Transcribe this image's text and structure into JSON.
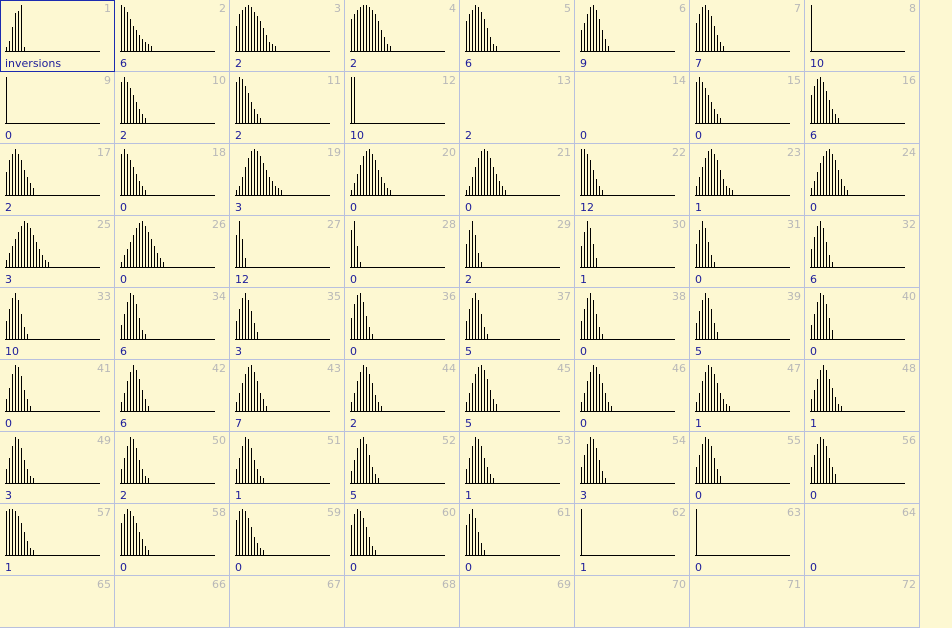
{
  "label_word": "inversions",
  "cells": [
    {
      "n": "1",
      "label": "inversions",
      "bars": [
        2,
        5,
        12,
        19,
        20,
        23,
        2
      ],
      "sel": true
    },
    {
      "n": "2",
      "label": "6",
      "bars": [
        20,
        19,
        17,
        14,
        11,
        9,
        7,
        5,
        4,
        3,
        2
      ]
    },
    {
      "n": "3",
      "label": "2",
      "bars": [
        11,
        16,
        18,
        19,
        20,
        19,
        17,
        15,
        13,
        10,
        7,
        4,
        3,
        2
      ]
    },
    {
      "n": "4",
      "label": "2",
      "bars": [
        14,
        16,
        18,
        19,
        20,
        20,
        19,
        18,
        16,
        13,
        9,
        6,
        3,
        2
      ]
    },
    {
      "n": "5",
      "label": "6",
      "bars": [
        13,
        16,
        18,
        20,
        19,
        17,
        14,
        10,
        6,
        3,
        2
      ]
    },
    {
      "n": "6",
      "label": "9",
      "bars": [
        9,
        12,
        16,
        19,
        20,
        18,
        14,
        9,
        5,
        2
      ]
    },
    {
      "n": "7",
      "label": "7",
      "bars": [
        12,
        16,
        19,
        20,
        18,
        15,
        11,
        7,
        4,
        2
      ]
    },
    {
      "n": "8",
      "label": "10",
      "bars": [
        20,
        1,
        1,
        1,
        1,
        1,
        1,
        1,
        1,
        1,
        1,
        1,
        1,
        1,
        1
      ]
    },
    {
      "n": "9",
      "label": "0",
      "bars": [
        20,
        1,
        1,
        1,
        1,
        1,
        1,
        1,
        1,
        1,
        1,
        1,
        1,
        1,
        1
      ]
    },
    {
      "n": "10",
      "label": "2",
      "bars": [
        18,
        20,
        18,
        15,
        12,
        9,
        6,
        4,
        2
      ]
    },
    {
      "n": "11",
      "label": "2",
      "bars": [
        18,
        20,
        19,
        16,
        13,
        9,
        6,
        4,
        2
      ]
    },
    {
      "n": "12",
      "label": "10",
      "bars": [
        20,
        20
      ]
    },
    {
      "n": "13",
      "label": "2",
      "bars": []
    },
    {
      "n": "14",
      "label": "0",
      "bars": []
    },
    {
      "n": "15",
      "label": "0",
      "bars": [
        18,
        20,
        18,
        15,
        12,
        9,
        6,
        4,
        2
      ]
    },
    {
      "n": "16",
      "label": "6",
      "bars": [
        12,
        16,
        19,
        20,
        18,
        14,
        10,
        6,
        4,
        2
      ]
    },
    {
      "n": "17",
      "label": "2",
      "bars": [
        10,
        15,
        18,
        20,
        18,
        15,
        11,
        8,
        5,
        3
      ]
    },
    {
      "n": "18",
      "label": "0",
      "bars": [
        18,
        20,
        18,
        15,
        12,
        9,
        6,
        4,
        2
      ]
    },
    {
      "n": "19",
      "label": "3",
      "bars": [
        2,
        4,
        8,
        12,
        16,
        19,
        20,
        19,
        17,
        14,
        11,
        8,
        6,
        4,
        3,
        2,
        1
      ]
    },
    {
      "n": "20",
      "label": "0",
      "bars": [
        2,
        5,
        9,
        13,
        17,
        19,
        20,
        18,
        15,
        11,
        8,
        5,
        3,
        2,
        1
      ]
    },
    {
      "n": "21",
      "label": "0",
      "bars": [
        2,
        4,
        8,
        12,
        16,
        19,
        20,
        19,
        16,
        12,
        9,
        6,
        4,
        2,
        1
      ]
    },
    {
      "n": "22",
      "label": "12",
      "bars": [
        20,
        20,
        18,
        15,
        11,
        7,
        4,
        2
      ]
    },
    {
      "n": "23",
      "label": "1",
      "bars": [
        4,
        8,
        12,
        16,
        19,
        20,
        18,
        15,
        11,
        7,
        4,
        3,
        2,
        1
      ]
    },
    {
      "n": "24",
      "label": "0",
      "bars": [
        3,
        6,
        10,
        14,
        17,
        19,
        20,
        18,
        15,
        11,
        7,
        4,
        2,
        1
      ]
    },
    {
      "n": "25",
      "label": "3",
      "bars": [
        3,
        6,
        9,
        12,
        15,
        18,
        20,
        19,
        17,
        14,
        11,
        8,
        5,
        3,
        2,
        1,
        1
      ]
    },
    {
      "n": "26",
      "label": "0",
      "bars": [
        2,
        5,
        8,
        11,
        14,
        17,
        19,
        20,
        18,
        15,
        12,
        9,
        6,
        4,
        2,
        1,
        1
      ]
    },
    {
      "n": "27",
      "label": "12",
      "bars": [
        14,
        20,
        12,
        4
      ]
    },
    {
      "n": "28",
      "label": "0",
      "bars": [
        16,
        20,
        9,
        2
      ]
    },
    {
      "n": "29",
      "label": "2",
      "bars": [
        10,
        16,
        20,
        14,
        6,
        2
      ]
    },
    {
      "n": "30",
      "label": "1",
      "bars": [
        9,
        15,
        20,
        17,
        10,
        4
      ]
    },
    {
      "n": "31",
      "label": "0",
      "bars": [
        10,
        16,
        20,
        17,
        11,
        5,
        2
      ]
    },
    {
      "n": "32",
      "label": "6",
      "bars": [
        8,
        13,
        18,
        20,
        17,
        11,
        5,
        2
      ]
    },
    {
      "n": "33",
      "label": "10",
      "bars": [
        8,
        13,
        18,
        20,
        17,
        11,
        5,
        2
      ]
    },
    {
      "n": "34",
      "label": "6",
      "bars": [
        6,
        11,
        16,
        20,
        19,
        15,
        9,
        4,
        2
      ]
    },
    {
      "n": "35",
      "label": "3",
      "bars": [
        8,
        13,
        18,
        20,
        17,
        12,
        7,
        3
      ]
    },
    {
      "n": "36",
      "label": "0",
      "bars": [
        9,
        15,
        19,
        20,
        16,
        10,
        5,
        2
      ]
    },
    {
      "n": "37",
      "label": "5",
      "bars": [
        8,
        13,
        18,
        20,
        17,
        11,
        5,
        2
      ]
    },
    {
      "n": "38",
      "label": "0",
      "bars": [
        8,
        13,
        18,
        20,
        17,
        11,
        5,
        2
      ]
    },
    {
      "n": "39",
      "label": "5",
      "bars": [
        7,
        12,
        17,
        20,
        18,
        13,
        7,
        3
      ]
    },
    {
      "n": "40",
      "label": "0",
      "bars": [
        6,
        11,
        16,
        20,
        19,
        15,
        9,
        4
      ]
    },
    {
      "n": "41",
      "label": "0",
      "bars": [
        5,
        10,
        16,
        20,
        19,
        15,
        9,
        5,
        2
      ]
    },
    {
      "n": "42",
      "label": "6",
      "bars": [
        4,
        8,
        13,
        17,
        20,
        18,
        14,
        9,
        5,
        2,
        1
      ]
    },
    {
      "n": "43",
      "label": "7",
      "bars": [
        4,
        8,
        12,
        16,
        19,
        20,
        17,
        13,
        8,
        5,
        2,
        1
      ]
    },
    {
      "n": "44",
      "label": "2",
      "bars": [
        4,
        8,
        13,
        17,
        20,
        19,
        16,
        12,
        7,
        4,
        2,
        1
      ]
    },
    {
      "n": "45",
      "label": "5",
      "bars": [
        4,
        8,
        12,
        16,
        19,
        20,
        18,
        14,
        9,
        5,
        3,
        1
      ]
    },
    {
      "n": "46",
      "label": "0",
      "bars": [
        4,
        8,
        13,
        17,
        20,
        19,
        16,
        12,
        8,
        4,
        2,
        1
      ]
    },
    {
      "n": "47",
      "label": "1",
      "bars": [
        4,
        8,
        13,
        17,
        20,
        19,
        16,
        12,
        8,
        5,
        3,
        2,
        1
      ]
    },
    {
      "n": "48",
      "label": "1",
      "bars": [
        5,
        9,
        14,
        18,
        20,
        18,
        14,
        10,
        6,
        3,
        2,
        1
      ]
    },
    {
      "n": "49",
      "label": "3",
      "bars": [
        6,
        11,
        16,
        20,
        19,
        15,
        10,
        6,
        3,
        2
      ]
    },
    {
      "n": "50",
      "label": "2",
      "bars": [
        6,
        11,
        16,
        20,
        19,
        15,
        10,
        6,
        3,
        2
      ]
    },
    {
      "n": "51",
      "label": "1",
      "bars": [
        6,
        11,
        16,
        20,
        19,
        15,
        10,
        6,
        3,
        2
      ]
    },
    {
      "n": "52",
      "label": "5",
      "bars": [
        5,
        10,
        15,
        19,
        20,
        17,
        12,
        7,
        4,
        2
      ]
    },
    {
      "n": "53",
      "label": "1",
      "bars": [
        6,
        11,
        16,
        20,
        19,
        16,
        11,
        7,
        4,
        2
      ]
    },
    {
      "n": "54",
      "label": "3",
      "bars": [
        7,
        12,
        17,
        20,
        19,
        15,
        10,
        5,
        2
      ]
    },
    {
      "n": "55",
      "label": "0",
      "bars": [
        7,
        12,
        17,
        20,
        19,
        16,
        11,
        6,
        3
      ]
    },
    {
      "n": "56",
      "label": "0",
      "bars": [
        7,
        12,
        17,
        20,
        19,
        16,
        11,
        7,
        4
      ]
    },
    {
      "n": "57",
      "label": "1",
      "bars": [
        19,
        20,
        20,
        19,
        17,
        14,
        10,
        6,
        3,
        2
      ]
    },
    {
      "n": "58",
      "label": "0",
      "bars": [
        14,
        18,
        20,
        19,
        17,
        14,
        10,
        7,
        4,
        2
      ]
    },
    {
      "n": "59",
      "label": "0",
      "bars": [
        15,
        19,
        20,
        19,
        16,
        12,
        8,
        5,
        3,
        2
      ]
    },
    {
      "n": "60",
      "label": "0",
      "bars": [
        13,
        18,
        20,
        19,
        16,
        12,
        8,
        4,
        2
      ]
    },
    {
      "n": "61",
      "label": "0",
      "bars": [
        13,
        18,
        20,
        16,
        10,
        5,
        2
      ]
    },
    {
      "n": "62",
      "label": "1",
      "bars": [
        20,
        1,
        1,
        1,
        1,
        1,
        1,
        1,
        1,
        1,
        1,
        1,
        1,
        1,
        1
      ]
    },
    {
      "n": "63",
      "label": "0",
      "bars": [
        20,
        1,
        1,
        1,
        1,
        1,
        1,
        1,
        1,
        1,
        1,
        1,
        1,
        1,
        1
      ]
    },
    {
      "n": "64",
      "label": "0",
      "bars": []
    },
    {
      "n": "65",
      "label": "",
      "bars": []
    },
    {
      "n": "66",
      "label": "",
      "bars": []
    },
    {
      "n": "67",
      "label": "",
      "bars": []
    },
    {
      "n": "68",
      "label": "",
      "bars": []
    },
    {
      "n": "69",
      "label": "",
      "bars": []
    },
    {
      "n": "70",
      "label": "",
      "bars": []
    },
    {
      "n": "71",
      "label": "",
      "bars": []
    },
    {
      "n": "72",
      "label": "",
      "bars": []
    }
  ],
  "chart_data": {
    "type": "bar",
    "panel_count": 72,
    "panel_labels": [
      "inversions",
      "6",
      "2",
      "2",
      "6",
      "9",
      "7",
      "10",
      "0",
      "2",
      "2",
      "10",
      "2",
      "0",
      "0",
      "6",
      "2",
      "0",
      "3",
      "0",
      "0",
      "12",
      "1",
      "0",
      "3",
      "0",
      "12",
      "0",
      "2",
      "1",
      "0",
      "6",
      "10",
      "6",
      "3",
      "0",
      "5",
      "0",
      "5",
      "0",
      "0",
      "6",
      "7",
      "2",
      "5",
      "0",
      "1",
      "1",
      "3",
      "2",
      "1",
      "5",
      "1",
      "3",
      "0",
      "0",
      "1",
      "0",
      "0",
      "0",
      "0",
      "1",
      "0",
      "0",
      "",
      "",
      "",
      "",
      "",
      "",
      "",
      ""
    ]
  },
  "colors": {
    "background": "#fdf8d2",
    "grid": "#b8c0de",
    "label": "#1c1c9a",
    "number": "#b8b8b8",
    "bar": "#000000",
    "selection": "#1c2bb0"
  }
}
